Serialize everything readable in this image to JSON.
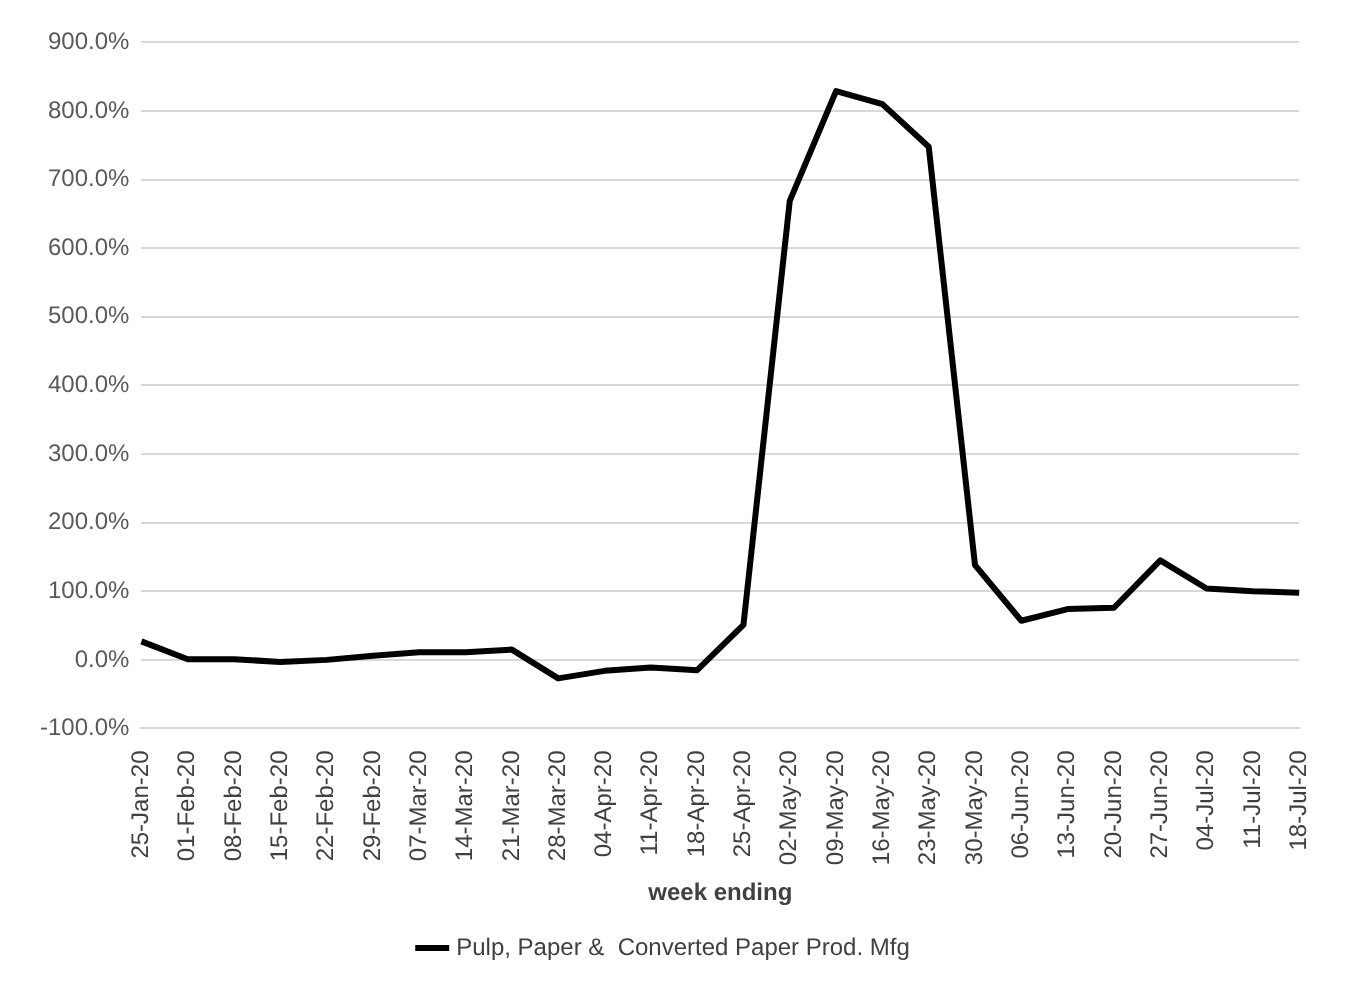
{
  "chart_data": {
    "type": "line",
    "xlabel": "week ending",
    "categories": [
      "25-Jan-20",
      "01-Feb-20",
      "08-Feb-20",
      "15-Feb-20",
      "22-Feb-20",
      "29-Feb-20",
      "07-Mar-20",
      "14-Mar-20",
      "21-Mar-20",
      "28-Mar-20",
      "04-Apr-20",
      "11-Apr-20",
      "18-Apr-20",
      "25-Apr-20",
      "02-May-20",
      "09-May-20",
      "16-May-20",
      "23-May-20",
      "30-May-20",
      "06-Jun-20",
      "13-Jun-20",
      "20-Jun-20",
      "27-Jun-20",
      "04-Jul-20",
      "11-Jul-20",
      "18-Jul-20"
    ],
    "series": [
      {
        "name": "Pulp, Paper &  Converted Paper Prod. Mfg",
        "color": "#000000",
        "values": [
          27,
          1,
          1,
          -3,
          0,
          6,
          11,
          11,
          15,
          -27,
          -16,
          -11,
          -15,
          51,
          669,
          829,
          810,
          748,
          138,
          57,
          74,
          76,
          145,
          104,
          100,
          98
        ]
      }
    ],
    "ylim": [
      -100,
      900
    ],
    "yticks": [
      {
        "value": -100,
        "label": "-100.0%"
      },
      {
        "value": 0,
        "label": "0.0%"
      },
      {
        "value": 100,
        "label": "100.0%"
      },
      {
        "value": 200,
        "label": "200.0%"
      },
      {
        "value": 300,
        "label": "300.0%"
      },
      {
        "value": 400,
        "label": "400.0%"
      },
      {
        "value": 500,
        "label": "500.0%"
      },
      {
        "value": 600,
        "label": "600.0%"
      },
      {
        "value": 700,
        "label": "700.0%"
      },
      {
        "value": 800,
        "label": "800.0%"
      },
      {
        "value": 900,
        "label": "900.0%"
      }
    ],
    "grid": "y",
    "legend": "bottom",
    "marker": "none",
    "line_style": "solid"
  }
}
